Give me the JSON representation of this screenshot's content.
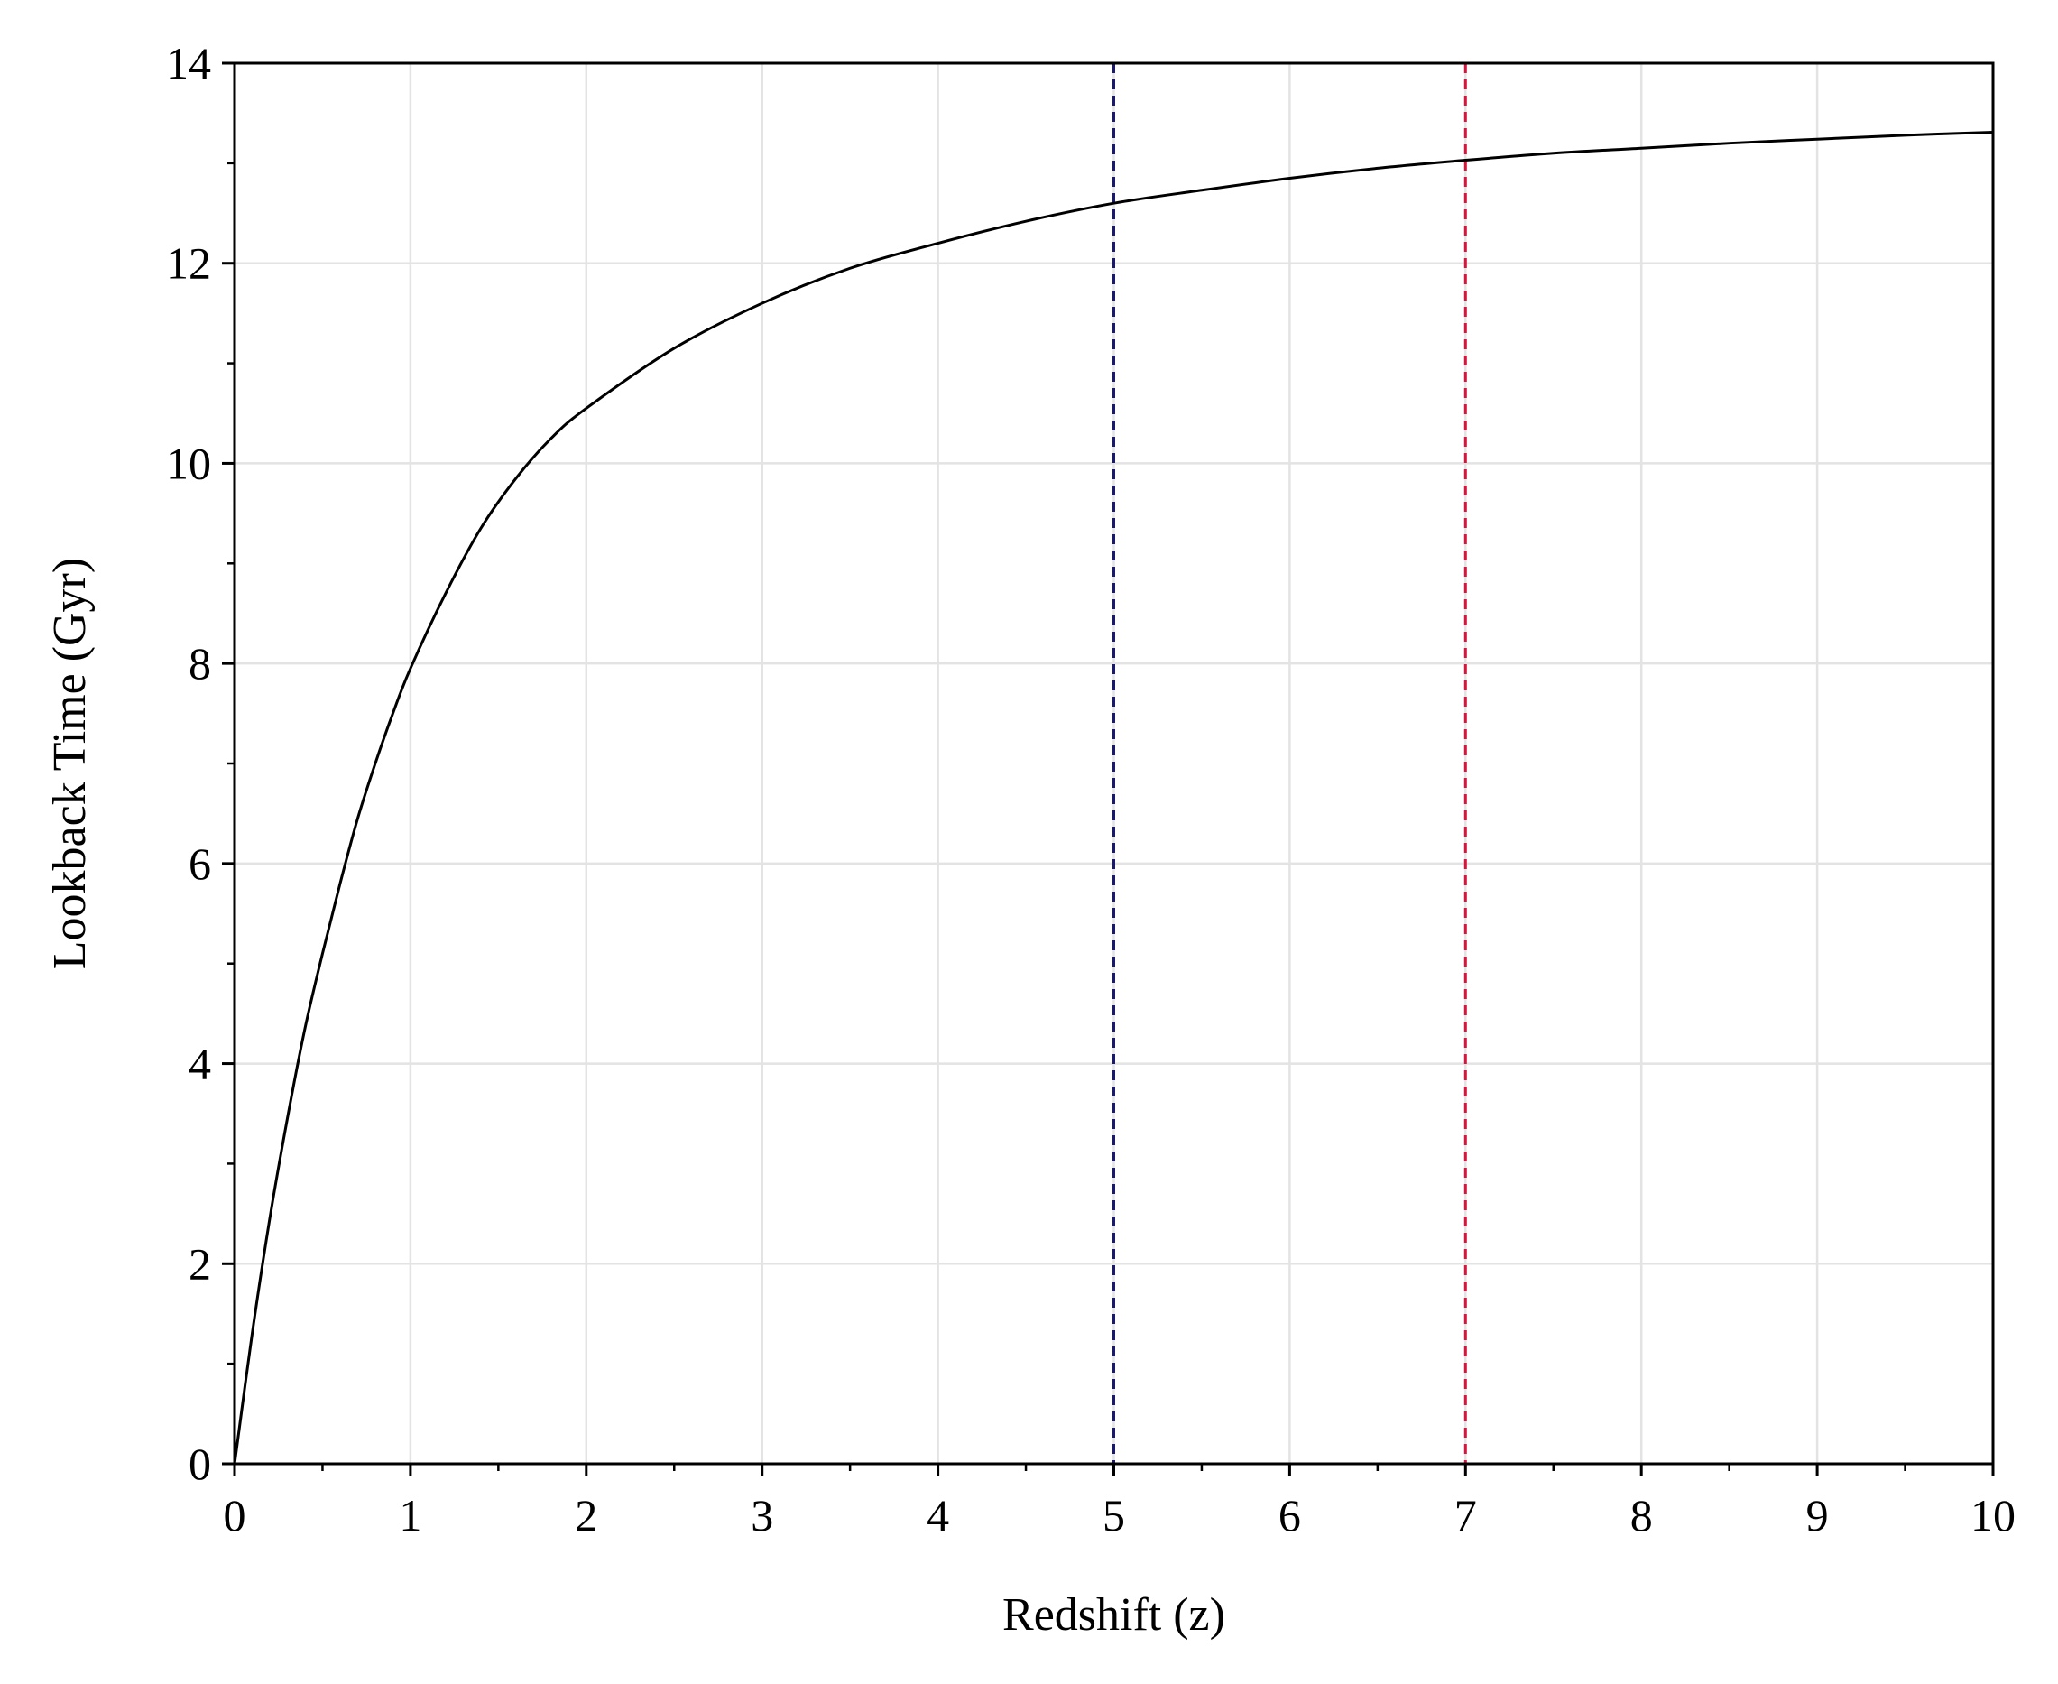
{
  "chart_data": {
    "type": "line",
    "title": "",
    "xlabel": "Redshift (z)",
    "ylabel": "Lookback Time (Gyr)",
    "xlim": [
      0,
      10
    ],
    "ylim": [
      0,
      14
    ],
    "x_ticks": [
      "0",
      "1",
      "2",
      "3",
      "4",
      "5",
      "6",
      "7",
      "8",
      "9",
      "10"
    ],
    "y_ticks": [
      "0",
      "2",
      "4",
      "6",
      "8",
      "10",
      "12",
      "14"
    ],
    "grid": true,
    "series": [
      {
        "color": "#000000",
        "x": [
          0,
          0.1,
          0.2,
          0.3,
          0.4,
          0.5,
          0.6,
          0.7,
          0.8,
          0.9,
          1.0,
          1.2,
          1.4,
          1.6,
          1.8,
          2.0,
          2.5,
          3.0,
          3.5,
          4.0,
          4.5,
          5.0,
          5.5,
          6.0,
          6.5,
          7.0,
          7.5,
          8.0,
          8.5,
          9.0,
          9.5,
          10.0
        ],
        "y": [
          0,
          1.3,
          2.45,
          3.45,
          4.35,
          5.1,
          5.8,
          6.45,
          7.0,
          7.5,
          7.95,
          8.7,
          9.35,
          9.85,
          10.25,
          10.55,
          11.15,
          11.6,
          11.95,
          12.2,
          12.42,
          12.6,
          12.73,
          12.85,
          12.95,
          13.03,
          13.1,
          13.15,
          13.2,
          13.24,
          13.28,
          13.31
        ]
      }
    ],
    "vlines": [
      {
        "x": 5,
        "color": "#191970",
        "style": "dashed"
      },
      {
        "x": 7,
        "color": "#dc143c",
        "style": "dashed"
      }
    ]
  }
}
